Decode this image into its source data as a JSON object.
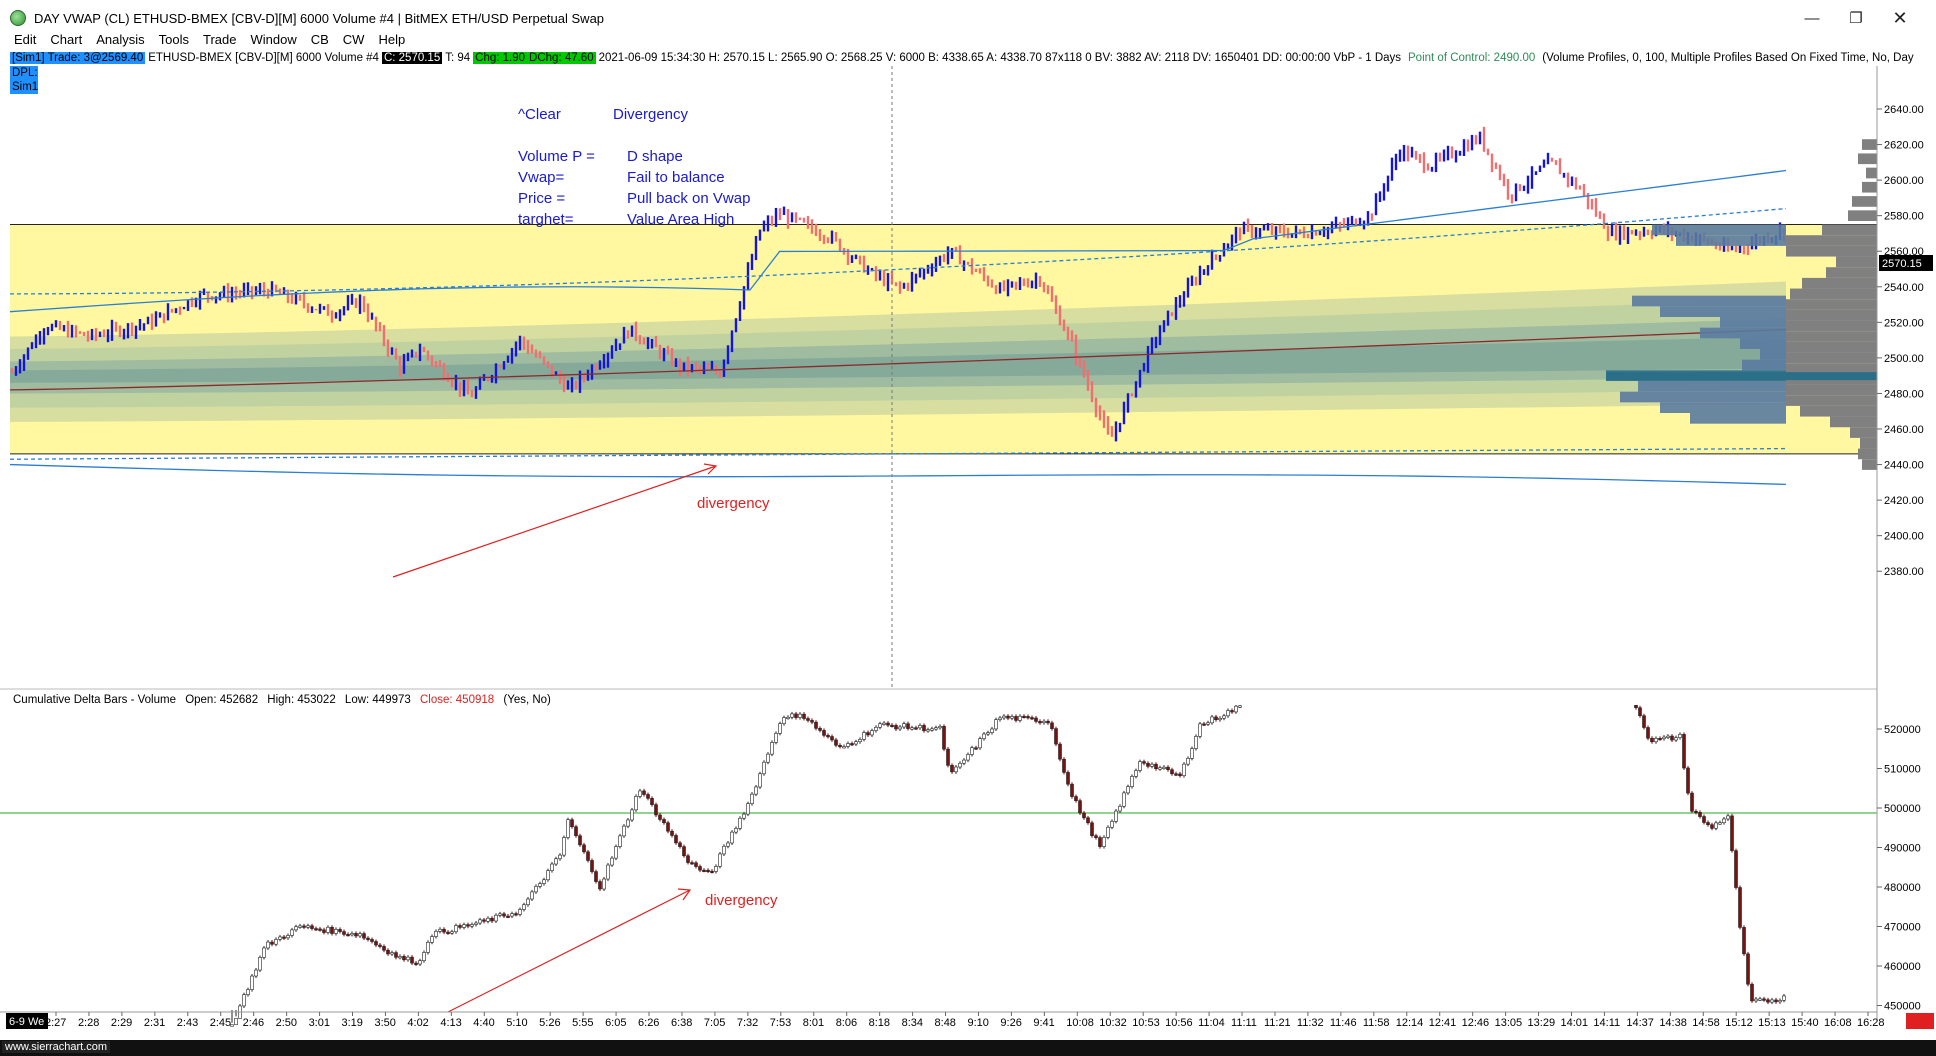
{
  "window": {
    "title": "DAY VWAP (CL) ETHUSD-BMEX [CBV-D][M]  6000 Volume  #4 | BitMEX ETH/USD Perpetual Swap",
    "minimize_icon": "minimize-icon",
    "maximize_icon": "maximize-icon",
    "close_icon": "close-icon"
  },
  "menu": [
    "Edit",
    "Chart",
    "Analysis",
    "Tools",
    "Trade",
    "Window",
    "CB",
    "CW",
    "Help"
  ],
  "info": {
    "sim_trade": "[Sim1]  Trade: 3@2569.40",
    "symbol": "ETHUSD-BMEX [CBV-D][M]  6000 Volume  #4",
    "close": "C: 2570.15",
    "t": "T: 94",
    "chg": "Chg: 1.90",
    "dchg": "DChg: 47.60",
    "details": "2021-06-09 15:34:30 H: 2570.15  L: 2565.90  O: 2568.25  V: 6000  B: 4338.65  A: 4338.70  87x118 0  BV: 3882  AV: 2118  DV: 1650401  DD: 00:00:00  VbP - 1 Days",
    "poc": "Point of Control: 2490.00",
    "profile": "(Volume Profiles, 0, 100, Multiple Profiles Based On Fixed Time, No, Day",
    "dpl": "DPL:",
    "sim1": "Sim1"
  },
  "notes": {
    "clear": "^Clear",
    "divergency": "Divergency",
    "volume_label": "Volume P =",
    "volume_value": "D shape",
    "vwap_label": "Vwap=",
    "vwap_value": "Fail to balance",
    "price_label": "Price =",
    "price_value": "Pull back on Vwap",
    "target_label": "targhet=",
    "target_value": "Value Area High"
  },
  "annotations": {
    "price_divergency": "divergency",
    "delta_divergency": "divergency"
  },
  "price_axis": {
    "ticks": [
      "2640.00",
      "2620.00",
      "2600.00",
      "2580.00",
      "2560.00",
      "2540.00",
      "2520.00",
      "2500.00",
      "2480.00",
      "2460.00",
      "2440.00",
      "2420.00",
      "2400.00",
      "2380.00"
    ],
    "last_price": "2570.15"
  },
  "delta_study": {
    "title": "Cumulative Delta Bars - Volume",
    "open": "Open: 452682",
    "high": "High: 453022",
    "low": "Low: 449973",
    "close": "Close: 450918",
    "flags": "(Yes, No)",
    "ticks": [
      "520000",
      "510000",
      "500000",
      "490000",
      "480000",
      "470000",
      "460000",
      "450000"
    ]
  },
  "time_axis": {
    "first": "6-9 We",
    "labels": [
      "2:27",
      "2:28",
      "2:29",
      "2:31",
      "2:43",
      "2:45",
      "2:46",
      "2:50",
      "3:01",
      "3:19",
      "3:50",
      "4:02",
      "4:13",
      "4:40",
      "5:10",
      "5:26",
      "5:55",
      "6:05",
      "6:26",
      "6:38",
      "7:05",
      "7:32",
      "7:53",
      "8:01",
      "8:06",
      "8:18",
      "8:34",
      "8:48",
      "9:10",
      "9:26",
      "9:41",
      "10:08",
      "10:32",
      "10:53",
      "10:56",
      "11:04",
      "11:11",
      "11:21",
      "11:32",
      "11:46",
      "11:58",
      "12:14",
      "12:41",
      "12:46",
      "13:05",
      "13:29",
      "14:01",
      "14:11",
      "14:37",
      "14:38",
      "14:58",
      "15:12",
      "15:13",
      "15:40",
      "16:08",
      "16:28"
    ]
  },
  "footer": {
    "brand": "www.sierrachart.com"
  },
  "colors": {
    "up_bar": "#1515d8",
    "down_bar": "#f07070",
    "value_area": "#fff8a0",
    "vwap": "#2a7fd4",
    "poc_band": "#5a1a1a",
    "profile": "#808080"
  }
}
